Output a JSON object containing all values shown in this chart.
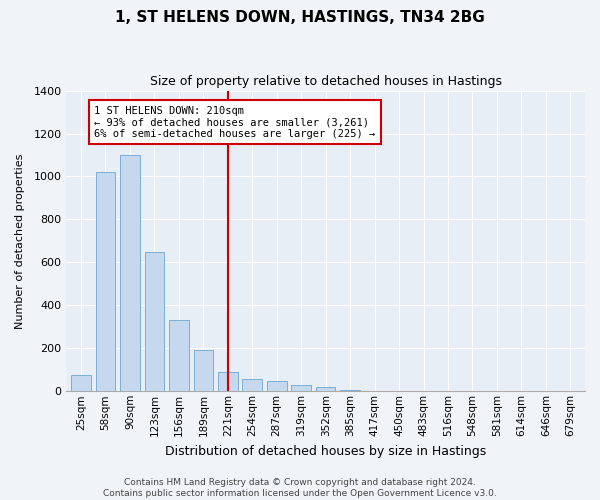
{
  "title": "1, ST HELENS DOWN, HASTINGS, TN34 2BG",
  "subtitle": "Size of property relative to detached houses in Hastings",
  "xlabel": "Distribution of detached houses by size in Hastings",
  "ylabel": "Number of detached properties",
  "bar_color": "#c5d8ee",
  "bar_edge_color": "#7aafd4",
  "background_color": "#e8eef5",
  "grid_color": "#ffffff",
  "fig_background": "#f0f4f8",
  "categories": [
    "25sqm",
    "58sqm",
    "90sqm",
    "123sqm",
    "156sqm",
    "189sqm",
    "221sqm",
    "254sqm",
    "287sqm",
    "319sqm",
    "352sqm",
    "385sqm",
    "417sqm",
    "450sqm",
    "483sqm",
    "516sqm",
    "548sqm",
    "581sqm",
    "614sqm",
    "646sqm",
    "679sqm"
  ],
  "values": [
    75,
    1020,
    1100,
    650,
    330,
    190,
    90,
    55,
    50,
    30,
    20,
    5,
    0,
    0,
    0,
    0,
    0,
    0,
    0,
    0,
    0
  ],
  "ylim": [
    0,
    1400
  ],
  "yticks": [
    0,
    200,
    400,
    600,
    800,
    1000,
    1200,
    1400
  ],
  "vline_x": 6.0,
  "annotation_text": "1 ST HELENS DOWN: 210sqm\n← 93% of detached houses are smaller (3,261)\n6% of semi-detached houses are larger (225) →",
  "annotation_box_color": "#ffffff",
  "annotation_box_edge_color": "#cc0000",
  "vline_color": "#cc0000",
  "footnote": "Contains HM Land Registry data © Crown copyright and database right 2024.\nContains public sector information licensed under the Open Government Licence v3.0."
}
